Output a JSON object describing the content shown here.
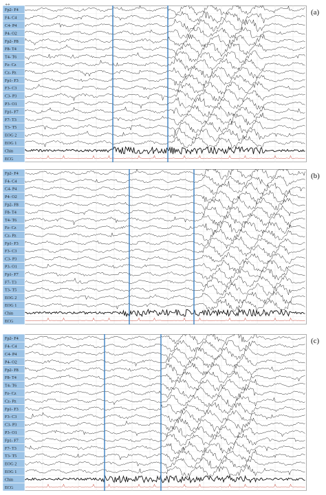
{
  "scale_marker": "↔",
  "panels": [
    {
      "tag": "(a)",
      "channels": [
        "Fp2- F4",
        "F4- C4",
        "C4- P4",
        "P4- O2",
        "Fp2- F8",
        "F8- T4",
        "T4- T6",
        "Fz- Cz",
        "Cz- Pz",
        "Fp1- F3",
        "F3- C3",
        "C3- P3",
        "P3- O1",
        "Fp1- F7",
        "F7- T3",
        "T3- T5",
        "EOG 2",
        "EOG 1",
        "Chin",
        "ECG"
      ]
    },
    {
      "tag": "(b)",
      "channels": [
        "Fp2- F4",
        "F4- C4",
        "C4- P4",
        "P4- O2",
        "Fp2- F8",
        "F8- T4",
        "T4- T6",
        "Fz- Cz",
        "Cz- Pz",
        "Fp1- F3",
        "F3- C3",
        "C3- P3",
        "P3- O1",
        "Fp1- F7",
        "F7- T3",
        "T3- T5",
        "EOG 2",
        "EOG 1",
        "Chin",
        "ECG"
      ]
    },
    {
      "tag": "(c)",
      "channels": [
        "Fp2- F4",
        "F4- C4",
        "C4- P4",
        "P4- O2",
        "Fp2- F8",
        "F8- T4",
        "T4- T6",
        "Fz- Cz",
        "Cz- Pz",
        "Fp1- F3",
        "F3- C3",
        "C3- P3",
        "P3- O1",
        "Fp1- F7",
        "F7- T3",
        "T3- T5",
        "EOG 2",
        "EOG 1",
        "Chin",
        "ECG"
      ]
    }
  ]
}
